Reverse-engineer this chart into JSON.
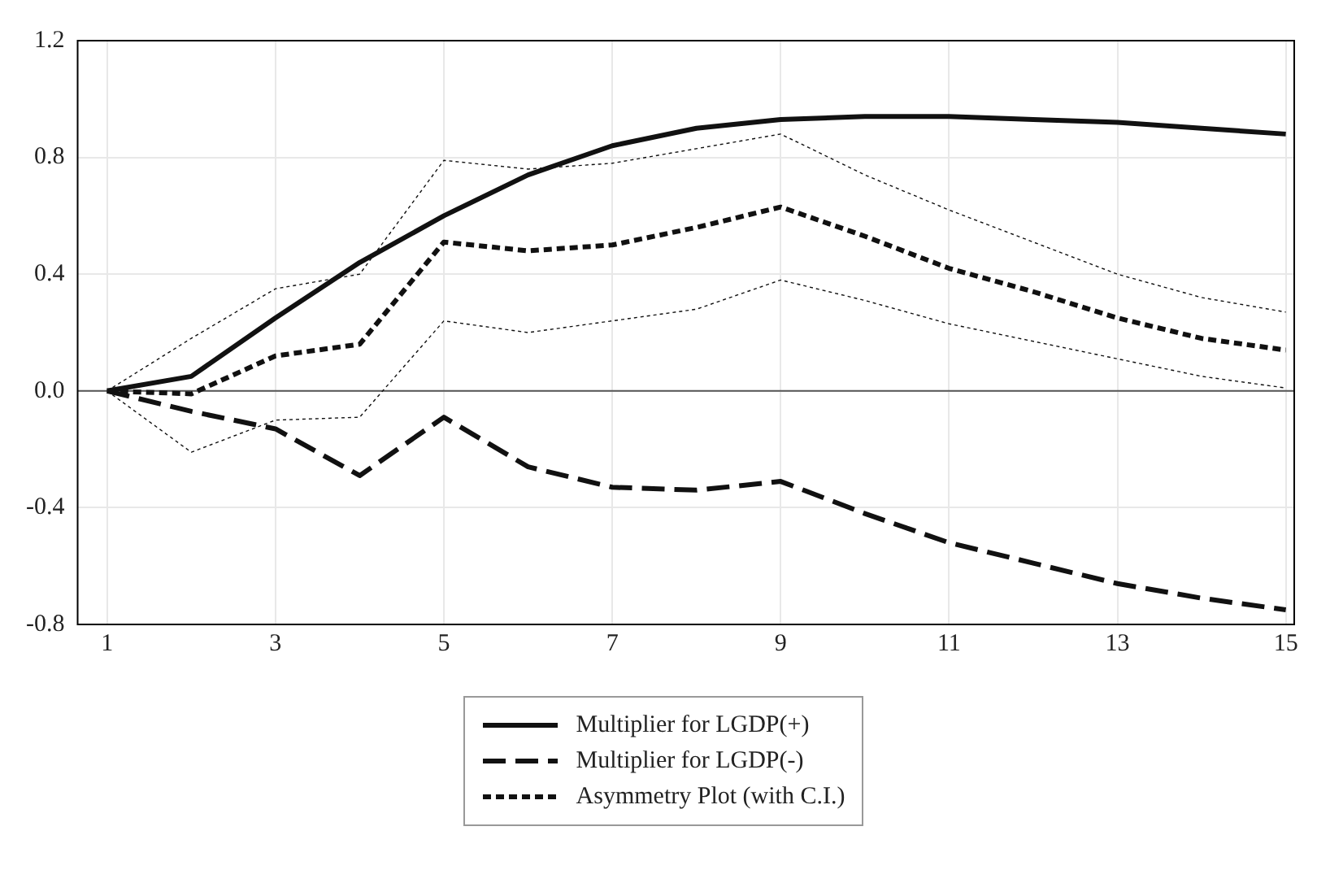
{
  "chart_data": {
    "type": "line",
    "x": [
      1,
      2,
      3,
      4,
      5,
      6,
      7,
      8,
      9,
      10,
      11,
      12,
      13,
      14,
      15
    ],
    "xlim": [
      0.65,
      15.1
    ],
    "xticks": [
      1,
      3,
      5,
      7,
      9,
      11,
      13,
      15
    ],
    "ylim": [
      -0.8,
      1.2
    ],
    "yticks": [
      {
        "value": -0.8,
        "label": "-0.8"
      },
      {
        "value": -0.4,
        "label": "-0.4"
      },
      {
        "value": 0,
        "label": "0.0"
      },
      {
        "value": 0.4,
        "label": "0.4"
      },
      {
        "value": 0.8,
        "label": "0.8"
      },
      {
        "value": 1.2,
        "label": "1.2"
      }
    ],
    "grid": true,
    "legend": "bottom",
    "marker": "none",
    "ref_lines": [
      {
        "axis": "y",
        "value": 0,
        "color": "#555555"
      }
    ],
    "series": [
      {
        "name": "Multiplier for LGDP(+)",
        "color": "#111111",
        "line_style": "solid",
        "values": [
          0,
          0.05,
          0.25,
          0.44,
          0.6,
          0.74,
          0.84,
          0.9,
          0.93,
          0.94,
          0.94,
          0.93,
          0.92,
          0.9,
          0.88
        ]
      },
      {
        "name": "Multiplier for LGDP(-)",
        "color": "#111111",
        "line_style": "dashed",
        "values": [
          0,
          -0.07,
          -0.13,
          -0.29,
          -0.09,
          -0.26,
          -0.33,
          -0.34,
          -0.31,
          -0.42,
          -0.52,
          -0.59,
          -0.66,
          -0.71,
          -0.75
        ]
      },
      {
        "name": "Asymmetry Plot (with C.I.)",
        "color": "#111111",
        "line_style": "dotted",
        "values": [
          0,
          -0.01,
          0.12,
          0.16,
          0.51,
          0.48,
          0.5,
          0.56,
          0.63,
          0.53,
          0.42,
          0.34,
          0.25,
          0.18,
          0.14
        ]
      },
      {
        "color": "#111111",
        "line_style": "dotted",
        "values": [
          0,
          0.18,
          0.35,
          0.4,
          0.79,
          0.76,
          0.78,
          0.83,
          0.88,
          0.74,
          0.62,
          0.51,
          0.4,
          0.32,
          0.27
        ]
      },
      {
        "color": "#111111",
        "line_style": "dotted",
        "values": [
          0,
          -0.21,
          -0.1,
          -0.09,
          0.24,
          0.2,
          0.24,
          0.28,
          0.38,
          0.31,
          0.23,
          0.17,
          0.11,
          0.05,
          0.01
        ]
      }
    ]
  }
}
